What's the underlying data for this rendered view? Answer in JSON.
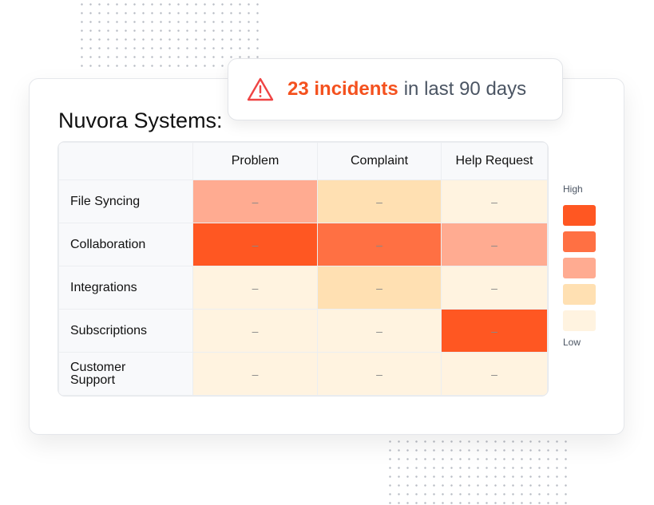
{
  "banner": {
    "icon": "warning-triangle-icon",
    "highlight": "23 incidents",
    "rest": "in last 90 days"
  },
  "title": "Nuvora Systems:",
  "chart_data": {
    "type": "heatmap",
    "columns": [
      "Problem",
      "Complaint",
      "Help Request"
    ],
    "rows": [
      "File Syncing",
      "Collaboration",
      "Integrations",
      "Subscriptions",
      "Customer Support"
    ],
    "levels": [
      [
        3,
        2,
        1
      ],
      [
        5,
        4,
        3
      ],
      [
        1,
        2,
        1
      ],
      [
        1,
        1,
        5
      ],
      [
        1,
        1,
        1
      ]
    ],
    "cell_text": "–",
    "legend": {
      "high": "High",
      "low": "Low",
      "colors": [
        "#ff5722",
        "#ff7043",
        "#ffab91",
        "#ffe0b2",
        "#fff3e0"
      ]
    }
  }
}
